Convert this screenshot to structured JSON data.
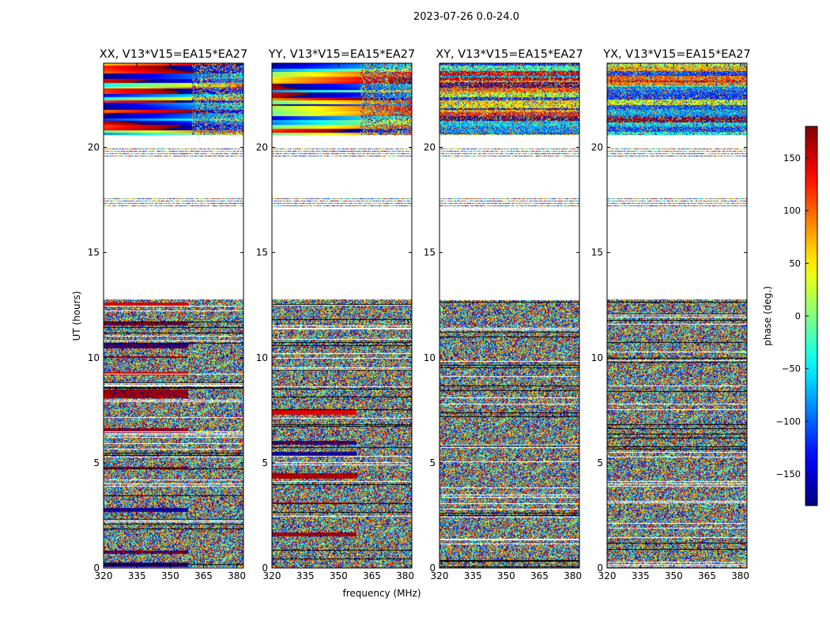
{
  "figure": {
    "suptitle": "2023-07-26 0.0-24.0",
    "xlabel": "frequency (MHz)",
    "ylabel": "UT (hours)"
  },
  "chart_data": {
    "type": "heatmap",
    "title": "2023-07-26 0.0-24.0",
    "xlabel": "frequency (MHz)",
    "ylabel": "UT (hours)",
    "xlim": [
      320,
      383
    ],
    "ylim": [
      0,
      24
    ],
    "xticks": [
      320,
      335,
      350,
      365,
      380
    ],
    "yticks": [
      0,
      5,
      10,
      15,
      20
    ],
    "panels": [
      {
        "title": "XX, V13*V15=EA15*EA27",
        "kind": "parallel"
      },
      {
        "title": "YY, V13*V15=EA15*EA27",
        "kind": "parallel"
      },
      {
        "title": "XY, V13*V15=EA15*EA27",
        "kind": "cross"
      },
      {
        "title": "YX, V13*V15=EA15*EA27",
        "kind": "cross"
      }
    ],
    "data_gaps_hours": [
      [
        17.6,
        19.5
      ],
      [
        12.8,
        17.2
      ],
      [
        20.0,
        20.6
      ]
    ],
    "colorbar": {
      "label": "phase (deg.)",
      "range": [
        -180,
        180
      ],
      "ticks": [
        150,
        100,
        50,
        0,
        -50,
        -100,
        -150
      ],
      "tick_labels": [
        "150",
        "100",
        "50",
        "0",
        "−50",
        "−100",
        "−150"
      ],
      "colormap": "jet"
    }
  }
}
